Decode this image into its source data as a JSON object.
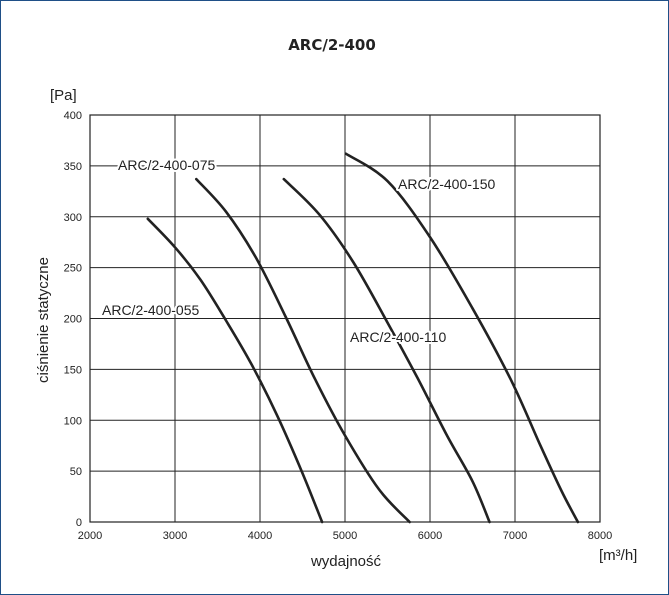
{
  "chart_data": {
    "type": "line",
    "title": "ARC/2-400",
    "xlabel": "wydajność",
    "xunit": "[m³/h]",
    "ylabel": "ciśnienie statyczne",
    "yunit": "[Pa]",
    "xlim": [
      2000,
      8000
    ],
    "ylim": [
      0,
      400
    ],
    "xticks": [
      2000,
      3000,
      4000,
      5000,
      6000,
      7000,
      8000
    ],
    "yticks": [
      0,
      50,
      100,
      150,
      200,
      250,
      300,
      350,
      400
    ],
    "grid": true,
    "series": [
      {
        "name": "ARC/2-400-055",
        "points": [
          [
            2680,
            298
          ],
          [
            3000,
            270
          ],
          [
            3300,
            238
          ],
          [
            3600,
            198
          ],
          [
            3900,
            155
          ],
          [
            4200,
            105
          ],
          [
            4500,
            48
          ],
          [
            4730,
            0
          ]
        ]
      },
      {
        "name": "ARC/2-400-075",
        "points": [
          [
            3250,
            337
          ],
          [
            3600,
            305
          ],
          [
            3950,
            260
          ],
          [
            4300,
            202
          ],
          [
            4650,
            140
          ],
          [
            5000,
            85
          ],
          [
            5400,
            32
          ],
          [
            5760,
            0
          ]
        ]
      },
      {
        "name": "ARC/2-400-110",
        "points": [
          [
            4280,
            337
          ],
          [
            4700,
            302
          ],
          [
            5100,
            255
          ],
          [
            5500,
            196
          ],
          [
            5850,
            142
          ],
          [
            6200,
            85
          ],
          [
            6500,
            40
          ],
          [
            6700,
            0
          ]
        ]
      },
      {
        "name": "ARC/2-400-150",
        "points": [
          [
            5010,
            362
          ],
          [
            5500,
            335
          ],
          [
            6000,
            280
          ],
          [
            6500,
            210
          ],
          [
            6950,
            140
          ],
          [
            7300,
            75
          ],
          [
            7550,
            30
          ],
          [
            7740,
            0
          ]
        ]
      }
    ]
  }
}
